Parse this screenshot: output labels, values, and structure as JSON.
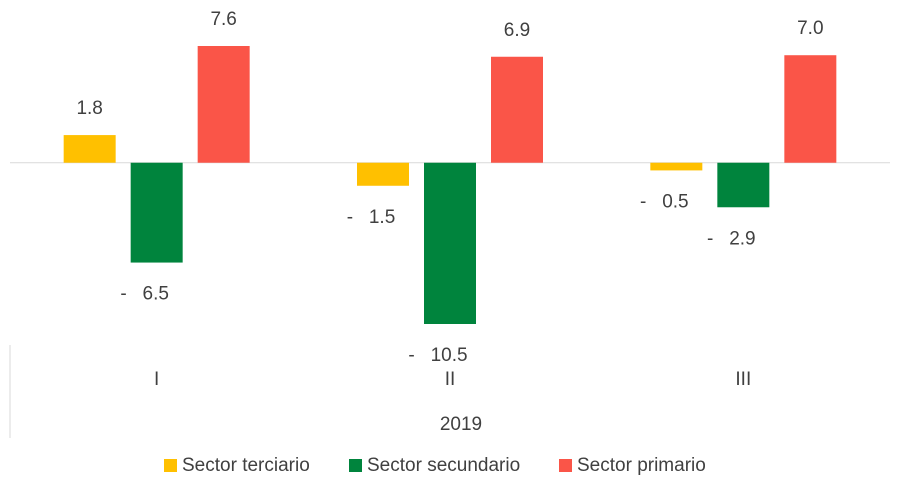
{
  "chart_data": {
    "type": "bar",
    "categories": [
      "I",
      "II",
      "III"
    ],
    "x_group": "2019",
    "series": [
      {
        "name": "Sector terciario",
        "color": "#ffc000",
        "values": [
          1.8,
          -1.5,
          -0.5
        ],
        "value_labels": [
          "1.8",
          "-   1.5",
          "-   0.5"
        ]
      },
      {
        "name": "Sector secundario",
        "color": "#00843d",
        "values": [
          -6.5,
          -10.5,
          -2.9
        ],
        "value_labels": [
          "-   6.5",
          "-   10.5",
          "-   2.9"
        ]
      },
      {
        "name": "Sector primario",
        "color": "#fa5548",
        "values": [
          7.6,
          6.9,
          7.0
        ],
        "value_labels": [
          "7.6",
          "6.9",
          "7.0"
        ]
      }
    ],
    "legend": "bottom"
  }
}
